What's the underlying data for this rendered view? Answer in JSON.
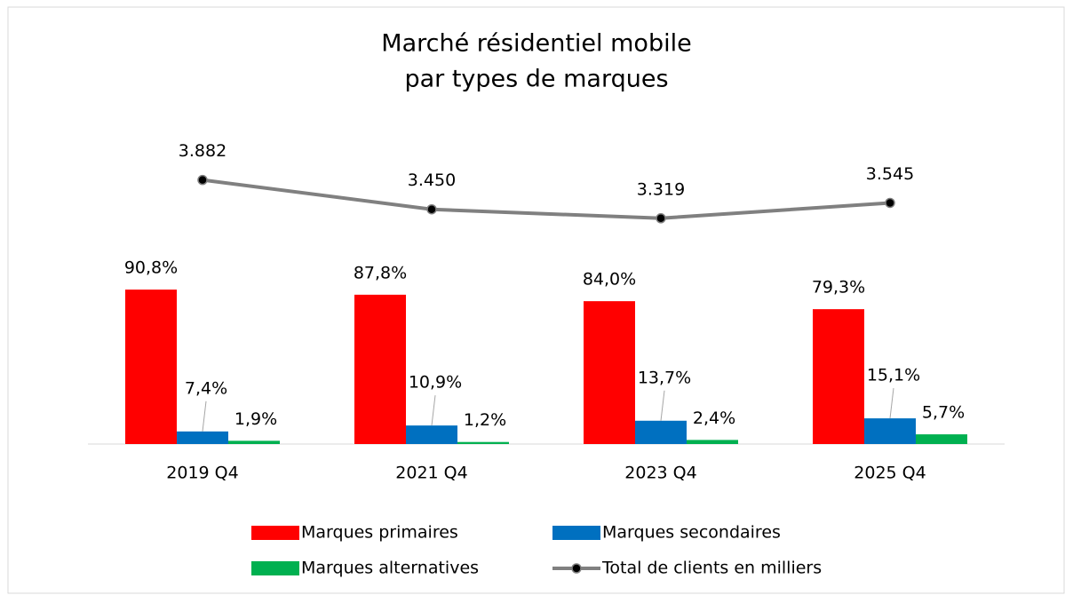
{
  "chart_data": {
    "type": "bar",
    "title": [
      "Marché résidentiel mobile",
      "par types de marques"
    ],
    "categories": [
      "2019 Q4",
      "2021 Q4",
      "2023 Q4",
      "2025 Q4"
    ],
    "series": [
      {
        "name": "Marques primaires",
        "color": "#ff0000",
        "values": [
          90.8,
          87.8,
          84.0,
          79.3
        ],
        "value_labels": [
          "90,8%",
          "87,8%",
          "84,0%",
          "79,3%"
        ]
      },
      {
        "name": "Marques secondaires",
        "color": "#0070c0",
        "values": [
          7.4,
          10.9,
          13.7,
          15.1
        ],
        "value_labels": [
          "7,4%",
          "10,9%",
          "13,7%",
          "15,1%"
        ]
      },
      {
        "name": "Marques alternatives",
        "color": "#00b050",
        "values": [
          1.9,
          1.2,
          2.4,
          5.7
        ],
        "value_labels": [
          "1,9%",
          "1,2%",
          "2,4%",
          "5,7%"
        ]
      },
      {
        "name": "Total de clients en milliers",
        "color": "#808080",
        "type": "line",
        "axis": "y2",
        "values": [
          3882,
          3450,
          3319,
          3545
        ],
        "value_labels": [
          "3.882",
          "3.450",
          "3.319",
          "3.545"
        ]
      }
    ],
    "ylim": [
      0,
      200
    ],
    "y2lim": [
      0,
      5000
    ],
    "grid": false
  }
}
